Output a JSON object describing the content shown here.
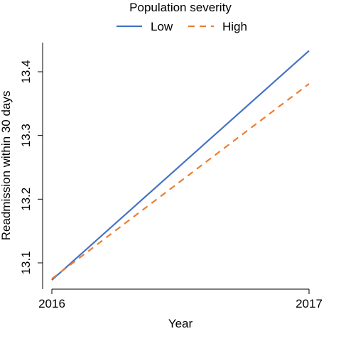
{
  "chart_data": {
    "type": "line",
    "title": "",
    "xlabel": "Year",
    "ylabel": "Readmission within 30 days",
    "x": [
      2016,
      2017
    ],
    "xticks": [
      "2016",
      "2017"
    ],
    "yticks": [
      "13.1",
      "13.2",
      "13.3",
      "13.4"
    ],
    "ylim": [
      13.06,
      13.45
    ],
    "grid": false,
    "legend": {
      "title": "Population severity",
      "position": "top-center"
    },
    "series": [
      {
        "name": "Low",
        "values": [
          13.073,
          13.433
        ],
        "color": "#4472C4",
        "style": "solid"
      },
      {
        "name": "High",
        "values": [
          13.075,
          13.381
        ],
        "color": "#ED7D31",
        "style": "dashed"
      }
    ]
  }
}
